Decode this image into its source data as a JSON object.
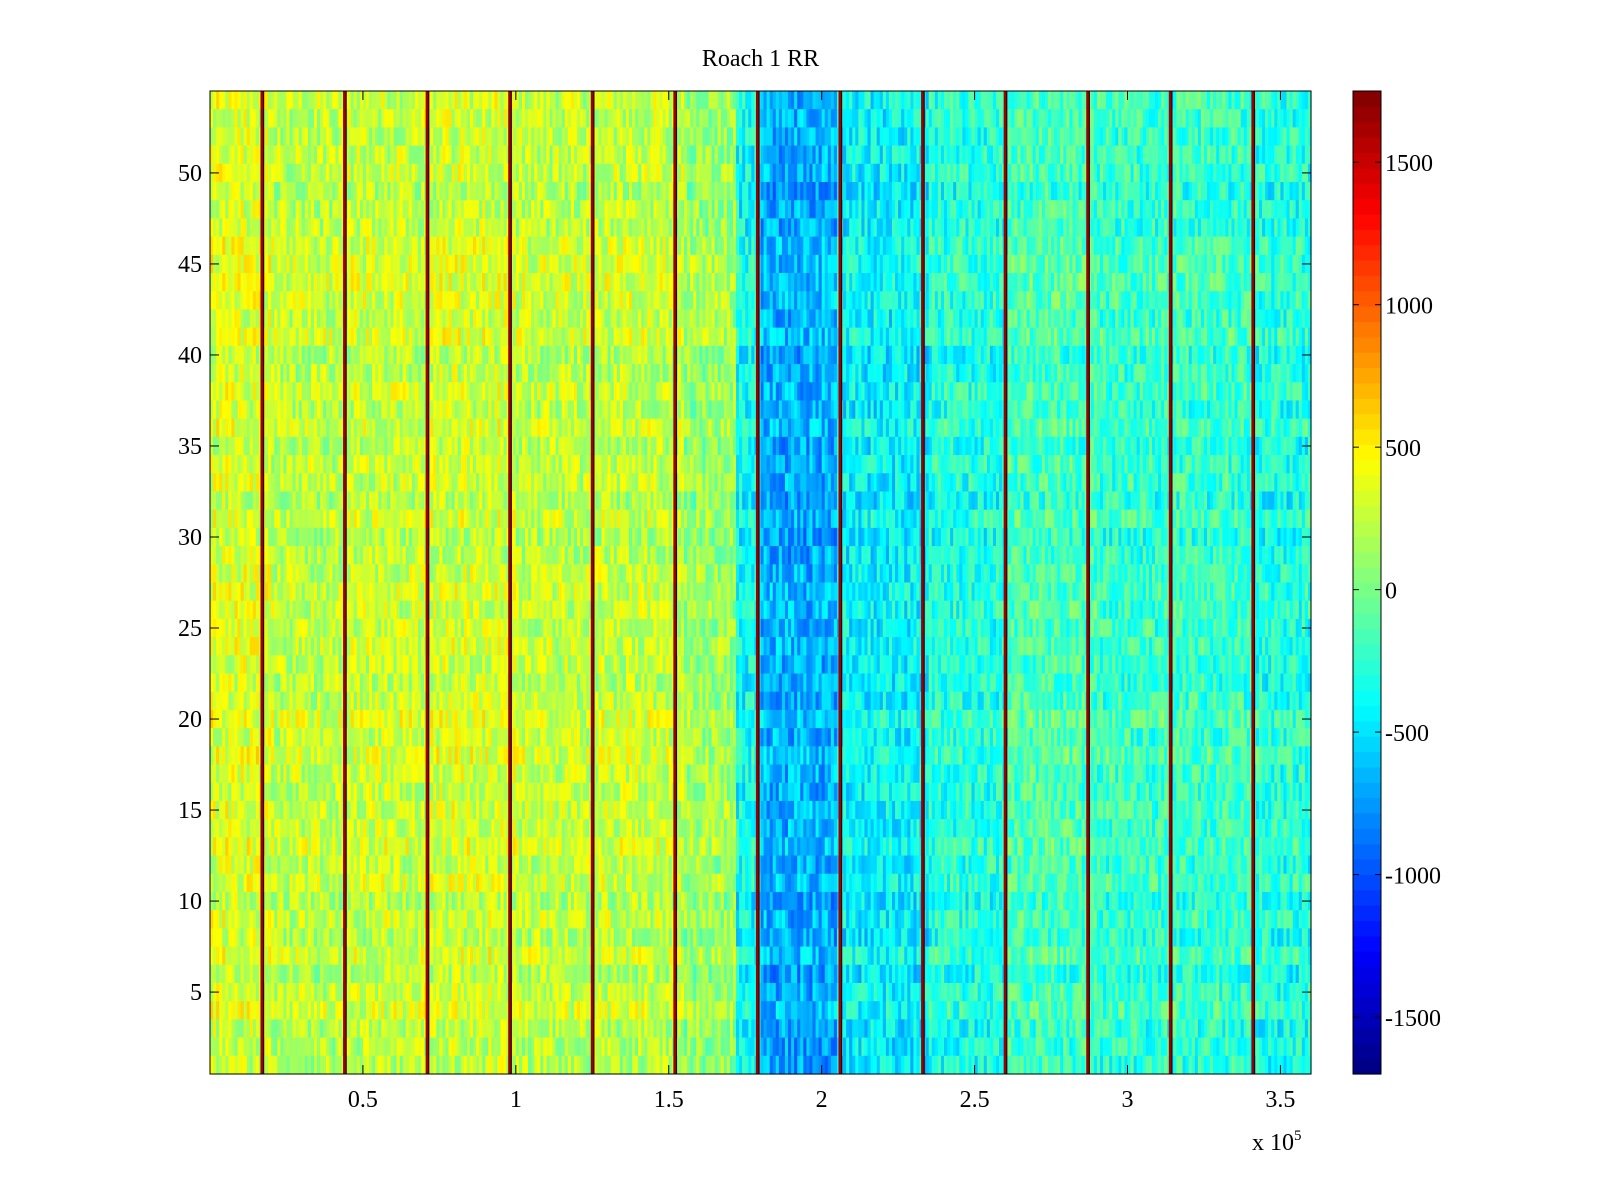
{
  "chart_data": {
    "type": "heatmap",
    "title": "Roach 1 RR",
    "xlabel": "",
    "ylabel": "",
    "x_exponent_label": "x 10",
    "x_exponent_power": "5",
    "xlim": [
      0,
      3.6
    ],
    "ylim": [
      0.5,
      54.5
    ],
    "x_ticks": [
      0.5,
      1,
      1.5,
      2,
      2.5,
      3,
      3.5
    ],
    "x_tick_labels": [
      "0.5",
      "1",
      "1.5",
      "2",
      "2.5",
      "3",
      "3.5"
    ],
    "y_ticks": [
      5,
      10,
      15,
      20,
      25,
      30,
      35,
      40,
      45,
      50
    ],
    "y_tick_labels": [
      "5",
      "10",
      "15",
      "20",
      "25",
      "30",
      "35",
      "40",
      "45",
      "50"
    ],
    "rows": 54,
    "colormap": "jet",
    "clim": [
      -1700,
      1750
    ],
    "colorbar_ticks": [
      1500,
      1000,
      500,
      0,
      -500,
      -1000,
      -1500
    ],
    "colorbar_tick_labels": [
      "1500",
      "1000",
      "500",
      "0",
      "-500",
      "-1000",
      "-1500"
    ],
    "region_levels": [
      {
        "x_start": 0.0,
        "x_end": 0.2,
        "level": 320
      },
      {
        "x_start": 0.2,
        "x_end": 0.45,
        "level": 230
      },
      {
        "x_start": 0.45,
        "x_end": 0.7,
        "level": 260
      },
      {
        "x_start": 0.7,
        "x_end": 1.0,
        "level": 290
      },
      {
        "x_start": 1.0,
        "x_end": 1.25,
        "level": 240
      },
      {
        "x_start": 1.25,
        "x_end": 1.55,
        "level": 250
      },
      {
        "x_start": 1.55,
        "x_end": 1.72,
        "level": 120
      },
      {
        "x_start": 1.72,
        "x_end": 1.8,
        "level": -380
      },
      {
        "x_start": 1.8,
        "x_end": 2.05,
        "level": -680
      },
      {
        "x_start": 2.05,
        "x_end": 2.35,
        "level": -430
      },
      {
        "x_start": 2.35,
        "x_end": 2.6,
        "level": -300
      },
      {
        "x_start": 2.6,
        "x_end": 2.9,
        "level": -170
      },
      {
        "x_start": 2.9,
        "x_end": 3.15,
        "level": -230
      },
      {
        "x_start": 3.15,
        "x_end": 3.42,
        "level": -220
      },
      {
        "x_start": 3.42,
        "x_end": 3.6,
        "level": -300
      }
    ],
    "spike_columns_x": [
      0.17,
      0.44,
      0.71,
      0.98,
      1.25,
      1.52,
      1.79,
      2.06,
      2.33,
      2.6,
      2.87,
      3.14,
      3.41
    ],
    "spike_level": 1650,
    "noise_amplitude": 260
  }
}
